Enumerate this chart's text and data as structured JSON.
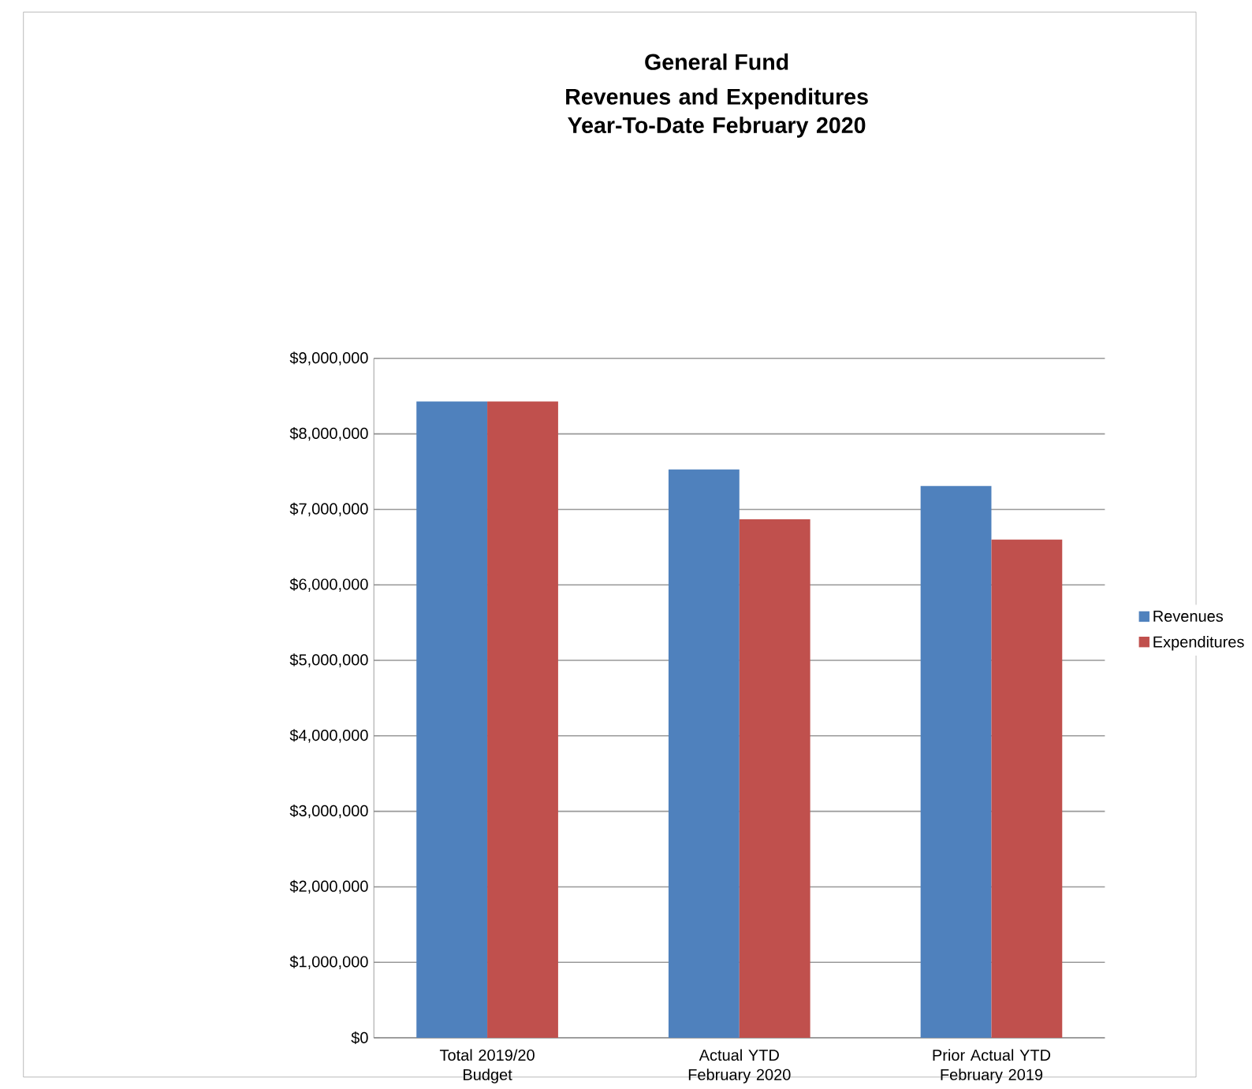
{
  "chart_data": {
    "type": "bar",
    "title": "General Fund",
    "subtitle": "Revenues and Expenditures Year-To-Date February 2020",
    "categories": [
      "Total 2019/20 Budget",
      "Actual YTD February 2020",
      "Prior Actual YTD February 2019"
    ],
    "series": [
      {
        "name": "Revenues",
        "color": "#4f81bd",
        "values": [
          8430000,
          7530000,
          7310000
        ]
      },
      {
        "name": "Expenditures",
        "color": "#c0504d",
        "values": [
          8430000,
          6870000,
          6600000
        ]
      }
    ],
    "ylim": [
      0,
      9000000
    ],
    "yticks": [
      {
        "value": 0,
        "label": "$0"
      },
      {
        "value": 1000000,
        "label": "$1,000,000"
      },
      {
        "value": 2000000,
        "label": "$2,000,000"
      },
      {
        "value": 3000000,
        "label": "$3,000,000"
      },
      {
        "value": 4000000,
        "label": "$4,000,000"
      },
      {
        "value": 5000000,
        "label": "$5,000,000"
      },
      {
        "value": 6000000,
        "label": "$6,000,000"
      },
      {
        "value": 7000000,
        "label": "$7,000,000"
      },
      {
        "value": 8000000,
        "label": "$8,000,000"
      },
      {
        "value": 9000000,
        "label": "$9,000,000"
      }
    ],
    "grid": "y",
    "legend": "right"
  }
}
